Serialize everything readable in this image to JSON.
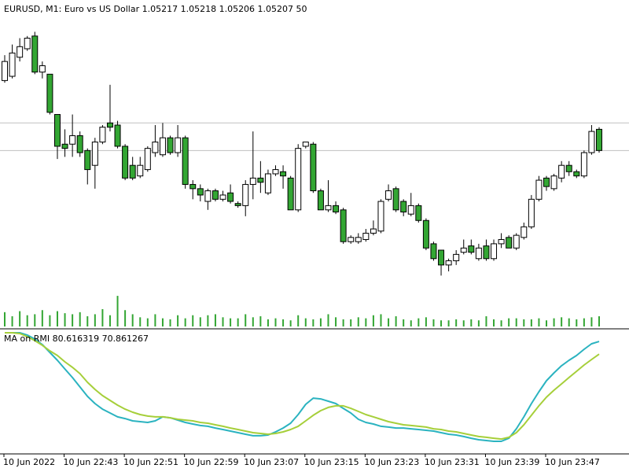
{
  "chart_data": [
    {
      "type": "candlestick",
      "title": "EURUSD, M1:  Euro vs US Dollar  1.05217 1.05218 1.05206 1.05207  50",
      "categories": [
        "10 Jun 2022",
        null,
        null,
        null,
        null,
        null,
        null,
        null,
        "10 Jun 22:43",
        null,
        null,
        null,
        null,
        null,
        null,
        null,
        "10 Jun 22:51",
        null,
        null,
        null,
        null,
        null,
        null,
        null,
        "10 Jun 22:59",
        null,
        null,
        null,
        null,
        null,
        null,
        null,
        "10 Jun 23:07",
        null,
        null,
        null,
        null,
        null,
        null,
        null,
        "10 Jun 23:15",
        null,
        null,
        null,
        null,
        null,
        null,
        null,
        "10 Jun 23:23",
        null,
        null,
        null,
        null,
        null,
        null,
        null,
        "10 Jun 23:31",
        null,
        null,
        null,
        null,
        null,
        null,
        null,
        "10 Jun 23:39",
        null,
        null,
        null,
        null,
        null,
        null,
        null,
        "10 Jun 23:47",
        null,
        null,
        null,
        null,
        null,
        null,
        null
      ],
      "open": [
        1.0524,
        1.05242,
        1.05251,
        1.05255,
        1.05261,
        1.05244,
        1.05243,
        1.05224,
        1.0521,
        1.0521,
        1.05214,
        1.05207,
        1.052,
        1.05211,
        1.0522,
        1.05219,
        1.05209,
        1.052,
        1.05195,
        1.05198,
        1.05206,
        1.05205,
        1.05213,
        1.05206,
        1.05213,
        1.05191,
        1.05189,
        1.05183,
        1.05188,
        1.05184,
        1.05187,
        1.05182,
        1.05181,
        1.05191,
        1.05194,
        1.05187,
        1.05196,
        1.05197,
        1.05194,
        1.05179,
        1.05209,
        1.0521,
        1.05188,
        1.05179,
        1.05181,
        1.05179,
        1.05164,
        1.05164,
        1.05165,
        1.05168,
        1.05169,
        1.05184,
        1.05189,
        1.05183,
        1.05177,
        1.05181,
        1.05174,
        1.05163,
        1.0516,
        1.05153,
        1.05155,
        1.05159,
        1.05162,
        1.05156,
        1.05162,
        1.05156,
        1.05163,
        1.05166,
        1.05161,
        1.05166,
        1.05171,
        1.05184,
        1.05194,
        1.05189,
        1.05194,
        1.052,
        1.05197,
        1.05195,
        1.05206,
        1.05217
      ],
      "high": [
        1.05252,
        1.05257,
        1.0526,
        1.05261,
        1.05263,
        1.05249,
        1.05243,
        1.05224,
        1.05217,
        1.05224,
        1.05216,
        1.05208,
        1.05213,
        1.05219,
        1.05238,
        1.05221,
        1.0521,
        1.05204,
        1.05204,
        1.05209,
        1.05219,
        1.0522,
        1.05214,
        1.05219,
        1.05214,
        1.05193,
        1.05191,
        1.05189,
        1.05189,
        1.05188,
        1.05191,
        1.05183,
        1.05193,
        1.05216,
        1.05202,
        1.05198,
        1.052,
        1.052,
        1.05195,
        1.0521,
        1.05211,
        1.05211,
        1.05189,
        1.05193,
        1.05183,
        1.0518,
        1.05167,
        1.05168,
        1.0517,
        1.05174,
        1.05184,
        1.05191,
        1.0519,
        1.05184,
        1.05187,
        1.05182,
        1.05175,
        1.05164,
        1.0516,
        1.05156,
        1.0516,
        1.05165,
        1.05165,
        1.05163,
        1.05165,
        1.05165,
        1.05168,
        1.05167,
        1.05168,
        1.05173,
        1.05186,
        1.05195,
        1.05195,
        1.05196,
        1.05202,
        1.05202,
        1.05198,
        1.05207,
        1.05219,
        1.05218
      ],
      "low": [
        1.05239,
        1.05241,
        1.05249,
        1.05254,
        1.05243,
        1.05241,
        1.05224,
        1.05203,
        1.05204,
        1.05204,
        1.05204,
        1.05191,
        1.05189,
        1.0521,
        1.05216,
        1.05208,
        1.05193,
        1.05193,
        1.05194,
        1.05197,
        1.05204,
        1.05204,
        1.05205,
        1.05204,
        1.05189,
        1.05184,
        1.05183,
        1.05179,
        1.05183,
        1.05183,
        1.05182,
        1.0518,
        1.05176,
        1.05184,
        1.05187,
        1.05186,
        1.05195,
        1.05189,
        1.05179,
        1.05178,
        1.05208,
        1.05187,
        1.05179,
        1.05178,
        1.05177,
        1.05163,
        1.05163,
        1.05163,
        1.05164,
        1.05167,
        1.05168,
        1.05183,
        1.05178,
        1.05176,
        1.05176,
        1.05173,
        1.0516,
        1.05155,
        1.05148,
        1.0515,
        1.05153,
        1.05158,
        1.05158,
        1.05155,
        1.05155,
        1.05155,
        1.05161,
        1.05161,
        1.0516,
        1.05165,
        1.0517,
        1.05183,
        1.05188,
        1.05188,
        1.05192,
        1.05195,
        1.05194,
        1.05194,
        1.05205,
        1.05206
      ],
      "close": [
        1.05249,
        1.05253,
        1.05256,
        1.0526,
        1.05244,
        1.05247,
        1.05225,
        1.05209,
        1.05208,
        1.05214,
        1.05206,
        1.05198,
        1.05211,
        1.05218,
        1.05218,
        1.05209,
        1.05194,
        1.05194,
        1.052,
        1.05208,
        1.05211,
        1.05213,
        1.05206,
        1.05213,
        1.05191,
        1.05189,
        1.05186,
        1.05188,
        1.05184,
        1.05186,
        1.05183,
        1.05181,
        1.05191,
        1.05194,
        1.05192,
        1.05196,
        1.05198,
        1.05195,
        1.05179,
        1.05208,
        1.05211,
        1.05188,
        1.05179,
        1.05181,
        1.05178,
        1.05164,
        1.05166,
        1.05166,
        1.05168,
        1.0517,
        1.05183,
        1.05188,
        1.05179,
        1.05178,
        1.05181,
        1.05174,
        1.05161,
        1.05156,
        1.05153,
        1.05155,
        1.05158,
        1.05161,
        1.05159,
        1.05161,
        1.05156,
        1.05163,
        1.05165,
        1.05161,
        1.05167,
        1.05171,
        1.05184,
        1.05193,
        1.0519,
        1.05195,
        1.052,
        1.05197,
        1.05195,
        1.05206,
        1.05216,
        1.05207
      ],
      "volume": [
        70,
        50,
        75,
        55,
        60,
        80,
        55,
        75,
        65,
        60,
        70,
        50,
        60,
        85,
        55,
        150,
        80,
        60,
        45,
        40,
        60,
        40,
        35,
        55,
        40,
        55,
        45,
        55,
        60,
        45,
        40,
        40,
        60,
        45,
        50,
        35,
        40,
        35,
        30,
        55,
        40,
        35,
        40,
        60,
        45,
        35,
        35,
        45,
        40,
        55,
        60,
        40,
        50,
        35,
        30,
        40,
        45,
        35,
        30,
        30,
        35,
        30,
        35,
        30,
        50,
        35,
        30,
        40,
        40,
        35,
        35,
        40,
        30,
        40,
        45,
        40,
        35,
        40,
        45,
        50
      ],
      "ylim": [
        1.05124,
        1.05278
      ],
      "volume_lim": [
        0,
        1600
      ],
      "price_lines": [
        1.0522,
        1.05207
      ],
      "up_color": "#ffffff",
      "down_color": "#33a633",
      "wick_color": "#000000",
      "volume_color": "#33a633",
      "price_line_color": "#c0c0c0"
    },
    {
      "type": "line",
      "title": "MA on RMI 80.616319 70.861267",
      "ylim": [
        -5,
        88
      ],
      "series": [
        {
          "color": "#2bb3c0",
          "values": [
            87.4,
            87.4,
            87.4,
            85.6,
            82.5,
            78.3,
            72.2,
            66.1,
            59.4,
            52.8,
            45.5,
            38.2,
            32.7,
            28.4,
            25.4,
            22.4,
            21.1,
            19.3,
            18.7,
            18.1,
            19.3,
            22.4,
            21.7,
            19.9,
            18.1,
            16.9,
            15.7,
            15.1,
            13.8,
            12.6,
            11.4,
            10.2,
            9.0,
            7.8,
            7.8,
            8.4,
            10.8,
            13.8,
            17.5,
            24.2,
            32.1,
            36.9,
            36.3,
            34.5,
            32.7,
            29.0,
            25.4,
            20.5,
            18.1,
            16.9,
            15.1,
            14.5,
            13.8,
            13.8,
            13.2,
            12.6,
            12.0,
            11.4,
            10.2,
            9.0,
            8.4,
            7.2,
            5.9,
            4.7,
            4.1,
            3.5,
            3.5,
            5.9,
            13.2,
            22.4,
            32.7,
            41.8,
            50.3,
            56.4,
            61.9,
            66.1,
            69.8,
            74.6,
            78.9,
            80.616319
          ]
        },
        {
          "color": "#a6cf3a",
          "values": [
            87.4,
            87.4,
            86.8,
            84.4,
            81.3,
            77.7,
            73.4,
            69.8,
            64.9,
            60.7,
            55.8,
            49.1,
            43.6,
            38.8,
            35.1,
            31.5,
            28.4,
            26.0,
            24.2,
            23.0,
            22.4,
            22.4,
            21.7,
            20.5,
            19.9,
            19.3,
            18.1,
            17.5,
            16.3,
            15.1,
            13.8,
            12.6,
            11.4,
            10.2,
            9.6,
            9.0,
            9.6,
            10.8,
            12.6,
            15.1,
            19.3,
            23.6,
            27.2,
            29.7,
            30.9,
            30.9,
            29.0,
            26.6,
            24.2,
            22.4,
            20.5,
            18.7,
            17.5,
            16.3,
            15.7,
            15.1,
            14.5,
            13.2,
            12.6,
            11.4,
            10.8,
            9.6,
            8.4,
            7.2,
            6.6,
            5.9,
            5.3,
            6.6,
            10.2,
            16.3,
            23.6,
            30.9,
            37.6,
            43.0,
            47.9,
            52.8,
            57.6,
            62.5,
            66.7,
            70.861267
          ]
        }
      ]
    }
  ]
}
